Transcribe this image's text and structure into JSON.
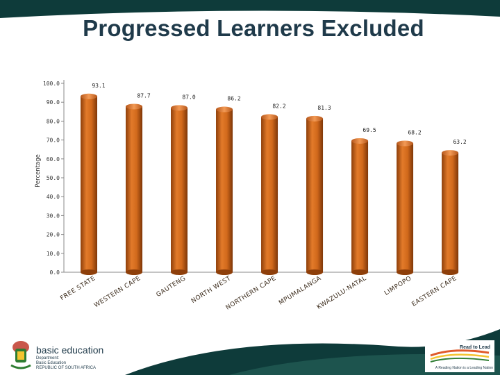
{
  "slide": {
    "title": "Progressed  Learners Excluded"
  },
  "chart_data": {
    "type": "bar",
    "title": "Progressed  Learners Excluded",
    "ylabel": "Percentage",
    "xlabel": "",
    "ylim": [
      0,
      100
    ],
    "yticks": [
      "0.0",
      "10.0",
      "20.0",
      "30.0",
      "40.0",
      "50.0",
      "60.0",
      "70.0",
      "80.0",
      "90.0",
      "100.0"
    ],
    "categories": [
      "FREE STATE",
      "WESTERN CAPE",
      "GAUTENG",
      "NORTH WEST",
      "NORTHERN CAPE",
      "MPUMALANGA",
      "KWAZULU-NATAL",
      "LIMPOPO",
      "EASTERN CAPE"
    ],
    "values": [
      93.1,
      87.7,
      87.0,
      86.2,
      82.2,
      81.3,
      69.5,
      68.2,
      63.2
    ],
    "data_labels": [
      "93.1",
      "87.7",
      "87.0",
      "86.2",
      "82.2",
      "81.3",
      "69.5",
      "68.2",
      "63.2"
    ],
    "bar_color": "#c9651a",
    "grid": false,
    "legend": "none"
  },
  "footer": {
    "department": "basic education",
    "dept_lines": [
      "Department:",
      "Basic Education",
      "REPUBLIC OF SOUTH AFRICA"
    ],
    "tag_head": "Read to Lead",
    "tag_sub": "A Reading Nation is a Leading Nation"
  },
  "colors": {
    "dark_teal": "#0e3b3a",
    "title": "#1f3a4a",
    "bar": "#c9651a"
  }
}
